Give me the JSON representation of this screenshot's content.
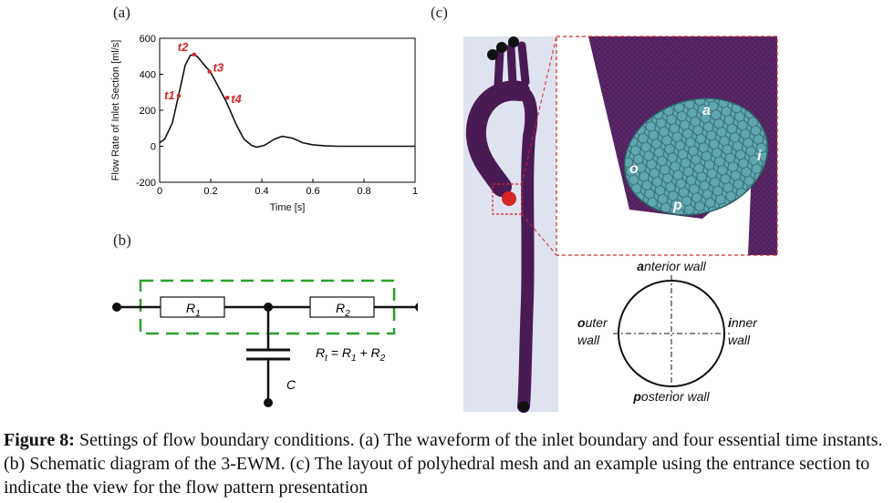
{
  "panels": {
    "a": "(a)",
    "b": "(b)",
    "c": "(c)"
  },
  "chart_data": {
    "type": "line",
    "xlabel": "Time [s]",
    "ylabel": "Flow Rate of Inlet Section [ml/s]",
    "xlim": [
      0,
      1
    ],
    "ylim": [
      -200,
      600
    ],
    "xticks": [
      "0",
      "0.2",
      "0.4",
      "0.6",
      "0.8",
      "1"
    ],
    "yticks": [
      "-200",
      "0",
      "200",
      "400",
      "600"
    ],
    "series": [
      {
        "x": [
          0,
          0.02,
          0.05,
          0.08,
          0.1,
          0.12,
          0.135,
          0.15,
          0.17,
          0.2,
          0.23,
          0.26,
          0.3,
          0.33,
          0.36,
          0.38,
          0.41,
          0.45,
          0.48,
          0.52,
          0.56,
          0.6,
          0.65,
          0.7,
          0.8,
          0.9,
          1.0
        ],
        "y": [
          20,
          40,
          130,
          320,
          450,
          505,
          510,
          495,
          460,
          410,
          330,
          250,
          120,
          40,
          5,
          -5,
          5,
          40,
          55,
          45,
          20,
          8,
          2,
          0,
          0,
          0,
          0
        ]
      }
    ],
    "annotations": [
      {
        "label": "t1",
        "x": 0.075,
        "y": 280
      },
      {
        "label": "t2",
        "x": 0.135,
        "y": 510
      },
      {
        "label": "t3",
        "x": 0.195,
        "y": 415
      },
      {
        "label": "t4",
        "x": 0.265,
        "y": 270
      }
    ],
    "grid": false
  },
  "circuit": {
    "r1": "R",
    "r1_sub": "1",
    "r2": "R",
    "r2_sub": "2",
    "c": "C",
    "eq_lhs": "R",
    "eq_lhs_sub": "t",
    "eq_mid": " = R",
    "eq_mid_sub": "1",
    "eq_plus": " + R",
    "eq_plus_sub": "2",
    "dash_color": "#2ca02c"
  },
  "mesh": {
    "labels": {
      "a": "a",
      "o": "o",
      "i": "i",
      "p": "p"
    },
    "vessel_color": "#4a1a55",
    "mesh_color": "#5fa7ae",
    "highlight_color": "#d62728"
  },
  "orientation": {
    "anterior_b": "a",
    "anterior_rest": "nterior wall",
    "posterior_b": "p",
    "posterior_rest": "osterior wall",
    "outer_b": "o",
    "outer_rest": "uter",
    "outer_line2": "wall",
    "inner_b": "i",
    "inner_rest": "nner",
    "inner_line2": "wall"
  },
  "caption": {
    "label": "Figure 8:",
    "text": " Settings of flow boundary conditions. (a) The waveform of the inlet boundary and four essential time instants. (b) Schematic diagram of the 3-EWM. (c) The layout of polyhedral mesh and an example using the entrance section to indicate the view for the flow pattern presentation"
  }
}
